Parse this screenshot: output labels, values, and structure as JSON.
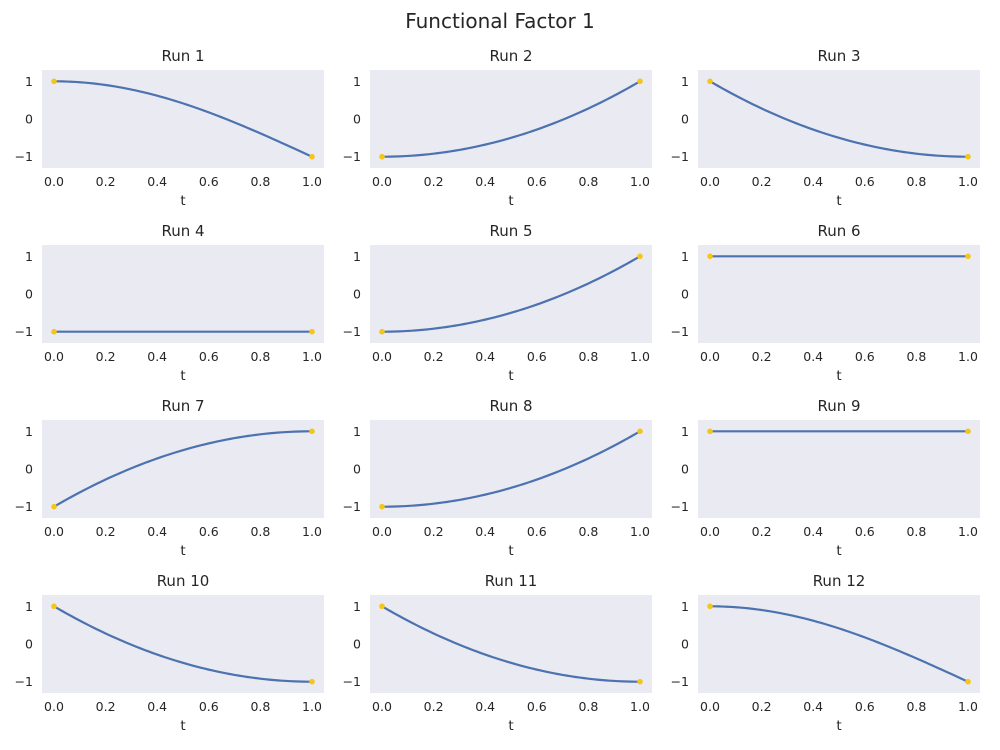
{
  "figure": {
    "title": "Functional Factor 1"
  },
  "colors": {
    "line": "#4c72b0",
    "marker": "#f5c518",
    "background": "#eaeaf2"
  },
  "chart_data": [
    {
      "type": "line",
      "title": "Run 1",
      "xlabel": "t",
      "ylabel": "",
      "xlim": [
        0,
        1
      ],
      "ylim": [
        -1.3,
        1.3
      ],
      "xticks": [
        "0.0",
        "0.2",
        "0.4",
        "0.6",
        "0.8",
        "1.0"
      ],
      "yticks": [
        "1",
        "0",
        "−1"
      ],
      "grid": false,
      "curve": "cos",
      "start": [
        0,
        1
      ],
      "end": [
        1,
        -1
      ]
    },
    {
      "type": "line",
      "title": "Run 2",
      "xlabel": "t",
      "ylabel": "",
      "xlim": [
        0,
        1
      ],
      "ylim": [
        -1.3,
        1.3
      ],
      "xticks": [
        "0.0",
        "0.2",
        "0.4",
        "0.6",
        "0.8",
        "1.0"
      ],
      "yticks": [
        "1",
        "0",
        "−1"
      ],
      "grid": false,
      "curve": "sq_up",
      "start": [
        0,
        -1
      ],
      "end": [
        1,
        1
      ]
    },
    {
      "type": "line",
      "title": "Run 3",
      "xlabel": "t",
      "ylabel": "",
      "xlim": [
        0,
        1
      ],
      "ylim": [
        -1.3,
        1.3
      ],
      "xticks": [
        "0.0",
        "0.2",
        "0.4",
        "0.6",
        "0.8",
        "1.0"
      ],
      "yticks": [
        "1",
        "0",
        "−1"
      ],
      "grid": false,
      "curve": "decel_down",
      "start": [
        0,
        1
      ],
      "end": [
        1,
        -1
      ]
    },
    {
      "type": "line",
      "title": "Run 4",
      "xlabel": "t",
      "ylabel": "",
      "xlim": [
        0,
        1
      ],
      "ylim": [
        -1.3,
        1.3
      ],
      "xticks": [
        "0.0",
        "0.2",
        "0.4",
        "0.6",
        "0.8",
        "1.0"
      ],
      "yticks": [
        "1",
        "0",
        "−1"
      ],
      "grid": false,
      "curve": "const",
      "start": [
        0,
        -1
      ],
      "end": [
        1,
        -1
      ]
    },
    {
      "type": "line",
      "title": "Run 5",
      "xlabel": "t",
      "ylabel": "",
      "xlim": [
        0,
        1
      ],
      "ylim": [
        -1.3,
        1.3
      ],
      "xticks": [
        "0.0",
        "0.2",
        "0.4",
        "0.6",
        "0.8",
        "1.0"
      ],
      "yticks": [
        "1",
        "0",
        "−1"
      ],
      "grid": false,
      "curve": "sq_up",
      "start": [
        0,
        -1
      ],
      "end": [
        1,
        1
      ]
    },
    {
      "type": "line",
      "title": "Run 6",
      "xlabel": "t",
      "ylabel": "",
      "xlim": [
        0,
        1
      ],
      "ylim": [
        -1.3,
        1.3
      ],
      "xticks": [
        "0.0",
        "0.2",
        "0.4",
        "0.6",
        "0.8",
        "1.0"
      ],
      "yticks": [
        "1",
        "0",
        "−1"
      ],
      "grid": false,
      "curve": "const",
      "start": [
        0,
        1
      ],
      "end": [
        1,
        1
      ]
    },
    {
      "type": "line",
      "title": "Run 7",
      "xlabel": "t",
      "ylabel": "",
      "xlim": [
        0,
        1
      ],
      "ylim": [
        -1.3,
        1.3
      ],
      "xticks": [
        "0.0",
        "0.2",
        "0.4",
        "0.6",
        "0.8",
        "1.0"
      ],
      "yticks": [
        "1",
        "0",
        "−1"
      ],
      "grid": false,
      "curve": "decel_up",
      "start": [
        0,
        -1
      ],
      "end": [
        1,
        1
      ]
    },
    {
      "type": "line",
      "title": "Run 8",
      "xlabel": "t",
      "ylabel": "",
      "xlim": [
        0,
        1
      ],
      "ylim": [
        -1.3,
        1.3
      ],
      "xticks": [
        "0.0",
        "0.2",
        "0.4",
        "0.6",
        "0.8",
        "1.0"
      ],
      "yticks": [
        "1",
        "0",
        "−1"
      ],
      "grid": false,
      "curve": "sq_up",
      "start": [
        0,
        -1
      ],
      "end": [
        1,
        1
      ]
    },
    {
      "type": "line",
      "title": "Run 9",
      "xlabel": "t",
      "ylabel": "",
      "xlim": [
        0,
        1
      ],
      "ylim": [
        -1.3,
        1.3
      ],
      "xticks": [
        "0.0",
        "0.2",
        "0.4",
        "0.6",
        "0.8",
        "1.0"
      ],
      "yticks": [
        "1",
        "0",
        "−1"
      ],
      "grid": false,
      "curve": "const",
      "start": [
        0,
        1
      ],
      "end": [
        1,
        1
      ]
    },
    {
      "type": "line",
      "title": "Run 10",
      "xlabel": "t",
      "ylabel": "",
      "xlim": [
        0,
        1
      ],
      "ylim": [
        -1.3,
        1.3
      ],
      "xticks": [
        "0.0",
        "0.2",
        "0.4",
        "0.6",
        "0.8",
        "1.0"
      ],
      "yticks": [
        "1",
        "0",
        "−1"
      ],
      "grid": false,
      "curve": "decel_down",
      "start": [
        0,
        1
      ],
      "end": [
        1,
        -1
      ]
    },
    {
      "type": "line",
      "title": "Run 11",
      "xlabel": "t",
      "ylabel": "",
      "xlim": [
        0,
        1
      ],
      "ylim": [
        -1.3,
        1.3
      ],
      "xticks": [
        "0.0",
        "0.2",
        "0.4",
        "0.6",
        "0.8",
        "1.0"
      ],
      "yticks": [
        "1",
        "0",
        "−1"
      ],
      "grid": false,
      "curve": "decel_down",
      "start": [
        0,
        1
      ],
      "end": [
        1,
        -1
      ]
    },
    {
      "type": "line",
      "title": "Run 12",
      "xlabel": "t",
      "ylabel": "",
      "xlim": [
        0,
        1
      ],
      "ylim": [
        -1.3,
        1.3
      ],
      "xticks": [
        "0.0",
        "0.2",
        "0.4",
        "0.6",
        "0.8",
        "1.0"
      ],
      "yticks": [
        "1",
        "0",
        "−1"
      ],
      "grid": false,
      "curve": "cos",
      "start": [
        0,
        1
      ],
      "end": [
        1,
        -1
      ]
    }
  ]
}
